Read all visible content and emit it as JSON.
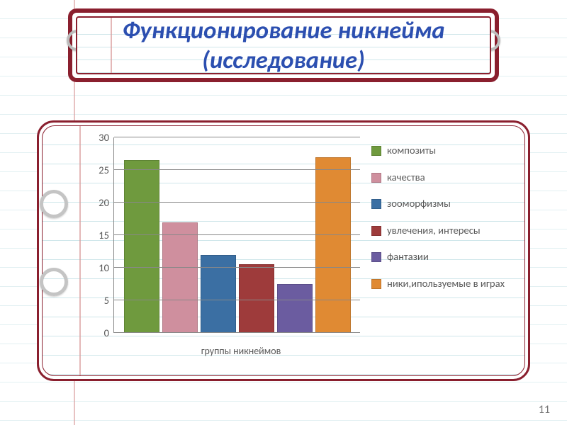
{
  "title": {
    "line1": "Функционирование никнейма",
    "line2": "(исследование)",
    "color": "#2c4fb0",
    "fontsize_pt": 26
  },
  "frame": {
    "border_color": "#8a1f2e",
    "rule_color": "#cfe6ea",
    "margin_line_color": "#d89a9a",
    "page_bg": "#ffffff"
  },
  "page_number": "11",
  "chart": {
    "type": "bar",
    "x_label": "группы никнеймов",
    "x_label_color": "#595959",
    "y": {
      "min": 0,
      "max": 30,
      "step": 5,
      "tick_color": "#595959",
      "grid_color": "#888888",
      "fontsize_pt": 11
    },
    "series": [
      {
        "label": "композиты",
        "value": 26.5,
        "color": "#6f9a3e"
      },
      {
        "label": "качества",
        "value": 17,
        "color": "#cf8f9e"
      },
      {
        "label": "зооморфизмы",
        "value": 12,
        "color": "#3b6fa3"
      },
      {
        "label": "увлечения, интересы",
        "value": 10.5,
        "color": "#9e3b3b"
      },
      {
        "label": "фантазии",
        "value": 7.5,
        "color": "#6b5ca0"
      },
      {
        "label": "ники,ипользуемые в играх",
        "value": 27,
        "color": "#e08a33"
      }
    ],
    "bar_border": "rgba(0,0,0,0.15)",
    "legend_fontsize_pt": 11,
    "legend_text_color": "#595959"
  }
}
